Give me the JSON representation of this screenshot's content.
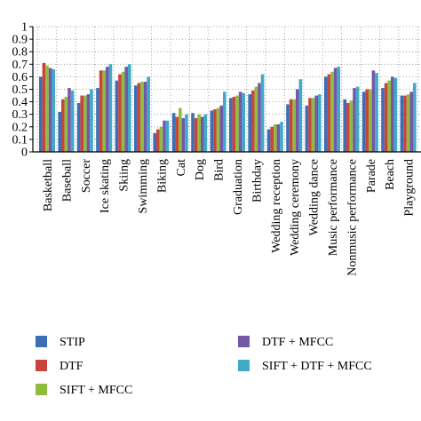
{
  "chart_data": {
    "type": "bar",
    "title": "",
    "xlabel": "",
    "ylabel": "",
    "ylim": [
      0,
      1
    ],
    "yticks": [
      "0",
      "0.1",
      "0.2",
      "0.3",
      "0.4",
      "0.5",
      "0.6",
      "0.7",
      "0.8",
      "0.9",
      "1"
    ],
    "grid": "dotted",
    "legend_position": "bottom",
    "categories": [
      "Basketball",
      "Baseball",
      "Soccer",
      "Ice skating",
      "Skiing",
      "Swimming",
      "Biking",
      "Cat",
      "Dog",
      "Bird",
      "Graduation",
      "Birthday",
      "Wedding reception",
      "Wedding ceremony",
      "Wedding dance",
      "Music performance",
      "Nonmusic performance",
      "Parade",
      "Beach",
      "Playground"
    ],
    "series": [
      {
        "name": "STIP",
        "color": "#3b6fb5",
        "values": [
          0.6,
          0.32,
          0.39,
          0.51,
          0.57,
          0.53,
          0.15,
          0.31,
          0.31,
          0.33,
          0.43,
          0.46,
          0.18,
          0.38,
          0.37,
          0.6,
          0.42,
          0.48,
          0.51,
          0.45
        ]
      },
      {
        "name": "DTF",
        "color": "#c9443a",
        "values": [
          0.71,
          0.42,
          0.45,
          0.65,
          0.62,
          0.55,
          0.18,
          0.28,
          0.27,
          0.34,
          0.44,
          0.49,
          0.2,
          0.42,
          0.43,
          0.62,
          0.39,
          0.5,
          0.55,
          0.45
        ]
      },
      {
        "name": "SIFT + MFCC",
        "color": "#8fbc3f",
        "values": [
          0.69,
          0.44,
          0.45,
          0.65,
          0.64,
          0.56,
          0.2,
          0.35,
          0.3,
          0.35,
          0.45,
          0.52,
          0.22,
          0.42,
          0.43,
          0.64,
          0.41,
          0.5,
          0.57,
          0.46
        ]
      },
      {
        "name": "DTF + MFCC",
        "color": "#7557a8",
        "values": [
          0.67,
          0.51,
          0.46,
          0.68,
          0.68,
          0.56,
          0.25,
          0.27,
          0.28,
          0.37,
          0.48,
          0.55,
          0.22,
          0.5,
          0.45,
          0.67,
          0.51,
          0.65,
          0.6,
          0.48
        ]
      },
      {
        "name": "SIFT + DTF + MFCC",
        "color": "#40a9c8",
        "values": [
          0.66,
          0.49,
          0.5,
          0.7,
          0.7,
          0.6,
          0.25,
          0.3,
          0.3,
          0.48,
          0.47,
          0.62,
          0.24,
          0.58,
          0.46,
          0.68,
          0.52,
          0.63,
          0.59,
          0.55
        ]
      }
    ]
  }
}
